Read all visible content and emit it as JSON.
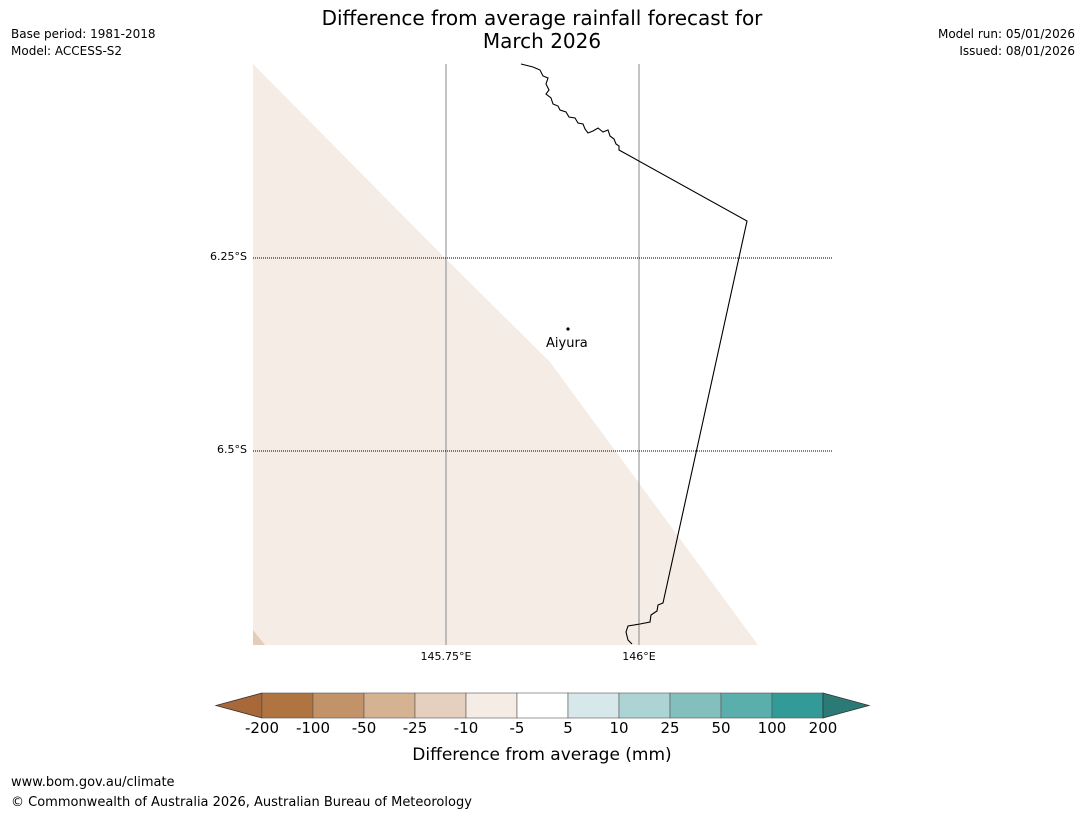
{
  "header": {
    "title_line1": "Difference from average rainfall forecast for",
    "title_line2": "March 2026",
    "base_period": "Base period: 1981-2018",
    "model": "Model: ACCESS-S2",
    "model_run": "Model run: 05/01/2026",
    "issued": "Issued: 08/01/2026"
  },
  "map": {
    "lat_labels": [
      "6.25°S",
      "6.5°S"
    ],
    "lon_labels": [
      "145.75°E",
      "146°E"
    ],
    "place": "Aiyura",
    "fill_color": "#f5ece6",
    "corner_color": "#e3cdb8"
  },
  "colorbar": {
    "title": "Difference from average (mm)",
    "labels": [
      "-200",
      "-100",
      "-50",
      "-25",
      "-10",
      "-5",
      "5",
      "10",
      "25",
      "50",
      "100",
      "200"
    ],
    "colors": [
      "#a9683a",
      "#af7440",
      "#c29268",
      "#d5b292",
      "#e5cfbe",
      "#f5ece6",
      "#ffffff",
      "#d6e8e9",
      "#acd4d4",
      "#83c0bd",
      "#5aaeab",
      "#329a97",
      "#2c7a75"
    ]
  },
  "footer": {
    "url": "www.bom.gov.au/climate",
    "copyright": "© Commonwealth of Australia 2026, Australian Bureau of Meteorology"
  }
}
